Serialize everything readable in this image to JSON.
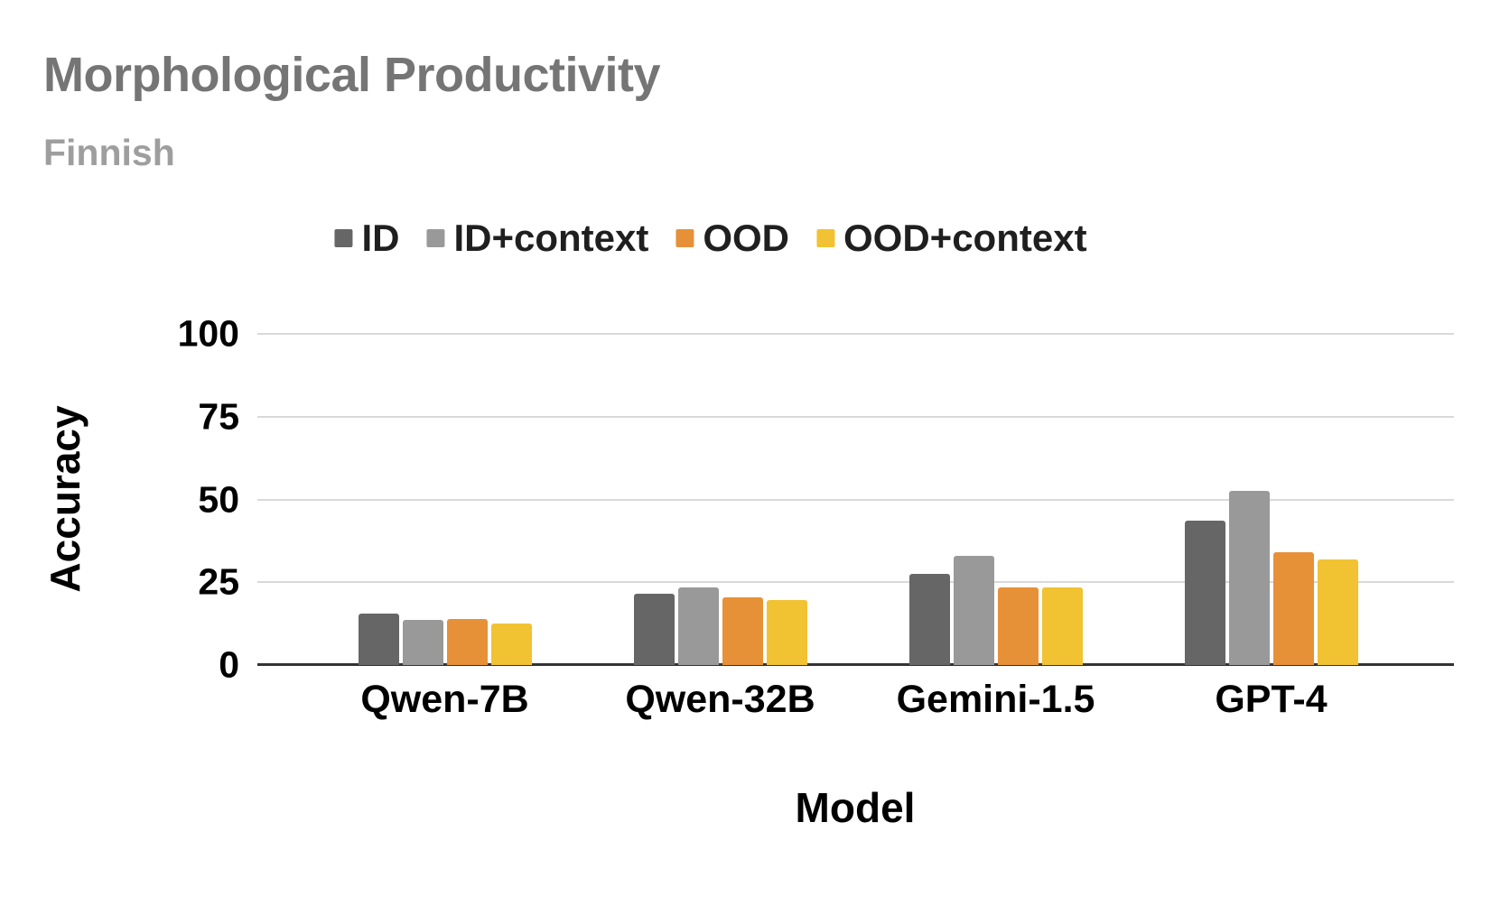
{
  "header": {
    "title": "Morphological Productivity",
    "subtitle": "Finnish"
  },
  "chart_data": {
    "type": "bar",
    "title": "Morphological Productivity",
    "subtitle": "Finnish",
    "xlabel": "Model",
    "ylabel": "Accuracy",
    "categories": [
      "Qwen-7B",
      "Qwen-32B",
      "Gemini-1.5",
      "GPT-4"
    ],
    "series": [
      {
        "name": "ID",
        "color": "#666666",
        "values": [
          15.5,
          21.5,
          27.5,
          43.5
        ]
      },
      {
        "name": "ID+context",
        "color": "#999999",
        "values": [
          13.5,
          23.5,
          33.0,
          52.5
        ]
      },
      {
        "name": "OOD",
        "color": "#E69138",
        "values": [
          14.0,
          20.5,
          23.5,
          34.0
        ]
      },
      {
        "name": "OOD+context",
        "color": "#F1C232",
        "values": [
          12.5,
          19.5,
          23.5,
          32.0
        ]
      }
    ],
    "ylim": [
      0,
      100
    ],
    "yticks": [
      0,
      25,
      50,
      75,
      100
    ],
    "grid": true,
    "legend_position": "top",
    "colors": {
      "grid_line": "#D9D9D9",
      "axis_line": "#333333",
      "title": "#757575",
      "subtitle": "#9E9E9E",
      "text": "#1F1F1F",
      "background": "#FFFFFF"
    }
  }
}
